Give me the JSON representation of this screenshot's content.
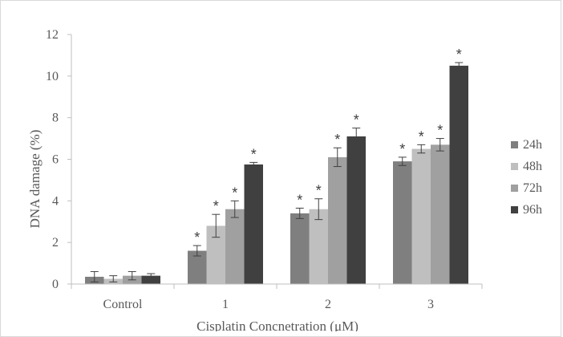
{
  "chart_data": {
    "type": "bar",
    "title": "",
    "xlabel": "Cisplatin Concnetration (μM)",
    "ylabel": "DNA damage (%)",
    "ylim": [
      0,
      12
    ],
    "yticks": [
      0,
      2,
      4,
      6,
      8,
      10,
      12
    ],
    "categories": [
      "Control",
      "1",
      "2",
      "3"
    ],
    "legend_position": "right",
    "grid": false,
    "series": [
      {
        "name": "24h",
        "color": "#7f7f7f",
        "values": [
          0.35,
          1.6,
          3.4,
          5.9
        ],
        "errors": [
          0.25,
          0.25,
          0.25,
          0.2
        ],
        "significance": [
          "",
          "*",
          "*",
          "*"
        ]
      },
      {
        "name": "48h",
        "color": "#bfbfbf",
        "values": [
          0.25,
          2.8,
          3.6,
          6.5
        ],
        "errors": [
          0.15,
          0.55,
          0.5,
          0.2
        ],
        "significance": [
          "",
          "*",
          "*",
          "*"
        ]
      },
      {
        "name": "72h",
        "color": "#a0a0a0",
        "values": [
          0.4,
          3.6,
          6.1,
          6.7
        ],
        "errors": [
          0.2,
          0.4,
          0.45,
          0.3
        ],
        "significance": [
          "",
          "*",
          "*",
          "*"
        ]
      },
      {
        "name": "96h",
        "color": "#404040",
        "values": [
          0.4,
          5.75,
          7.1,
          10.5
        ],
        "errors": [
          0.1,
          0.1,
          0.4,
          0.15
        ],
        "significance": [
          "",
          "*",
          "*",
          "*"
        ]
      }
    ]
  }
}
